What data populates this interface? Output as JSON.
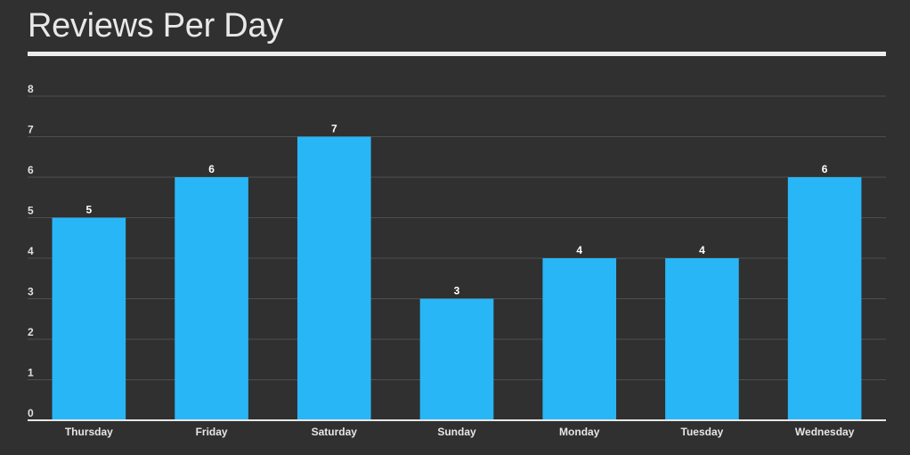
{
  "chart_data": {
    "type": "bar",
    "title": "Reviews Per Day",
    "xlabel": "",
    "ylabel": "",
    "categories": [
      "Thursday",
      "Friday",
      "Saturday",
      "Sunday",
      "Monday",
      "Tuesday",
      "Wednesday"
    ],
    "values": [
      5,
      6,
      7,
      3,
      4,
      4,
      6
    ],
    "ylim": [
      0,
      8
    ],
    "yticks": [
      0,
      1,
      2,
      3,
      4,
      5,
      6,
      7,
      8
    ],
    "grid": true,
    "data_labels": true,
    "bar_color": "#29b6f6",
    "background_color": "#303030"
  }
}
